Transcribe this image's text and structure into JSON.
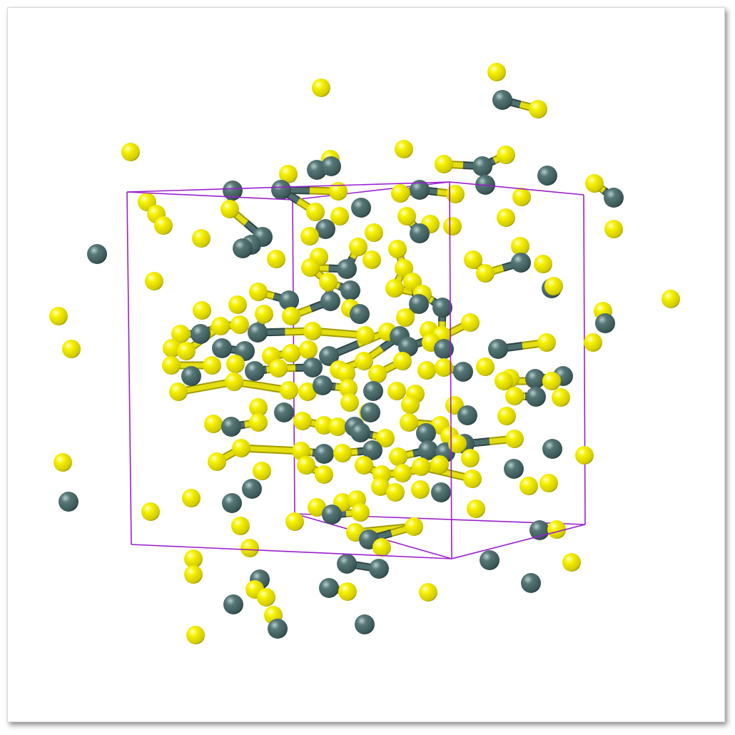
{
  "structure": {
    "background_color": "#ffffff",
    "cell_color": "#9b1fcf",
    "atom_species": [
      {
        "name": "yellow-atom",
        "color": "#f4f000",
        "highlight": "#ffffa8",
        "shade": "#9c9400"
      },
      {
        "name": "gray-atom",
        "color": "#4f6e6e",
        "highlight": "#a9c4c4",
        "shade": "#213838"
      }
    ],
    "bond_color_yellow": "#e3de12",
    "bond_color_gray": "#4f6e6e",
    "atom_counts": {
      "yellow": 188,
      "gray": 74
    }
  }
}
